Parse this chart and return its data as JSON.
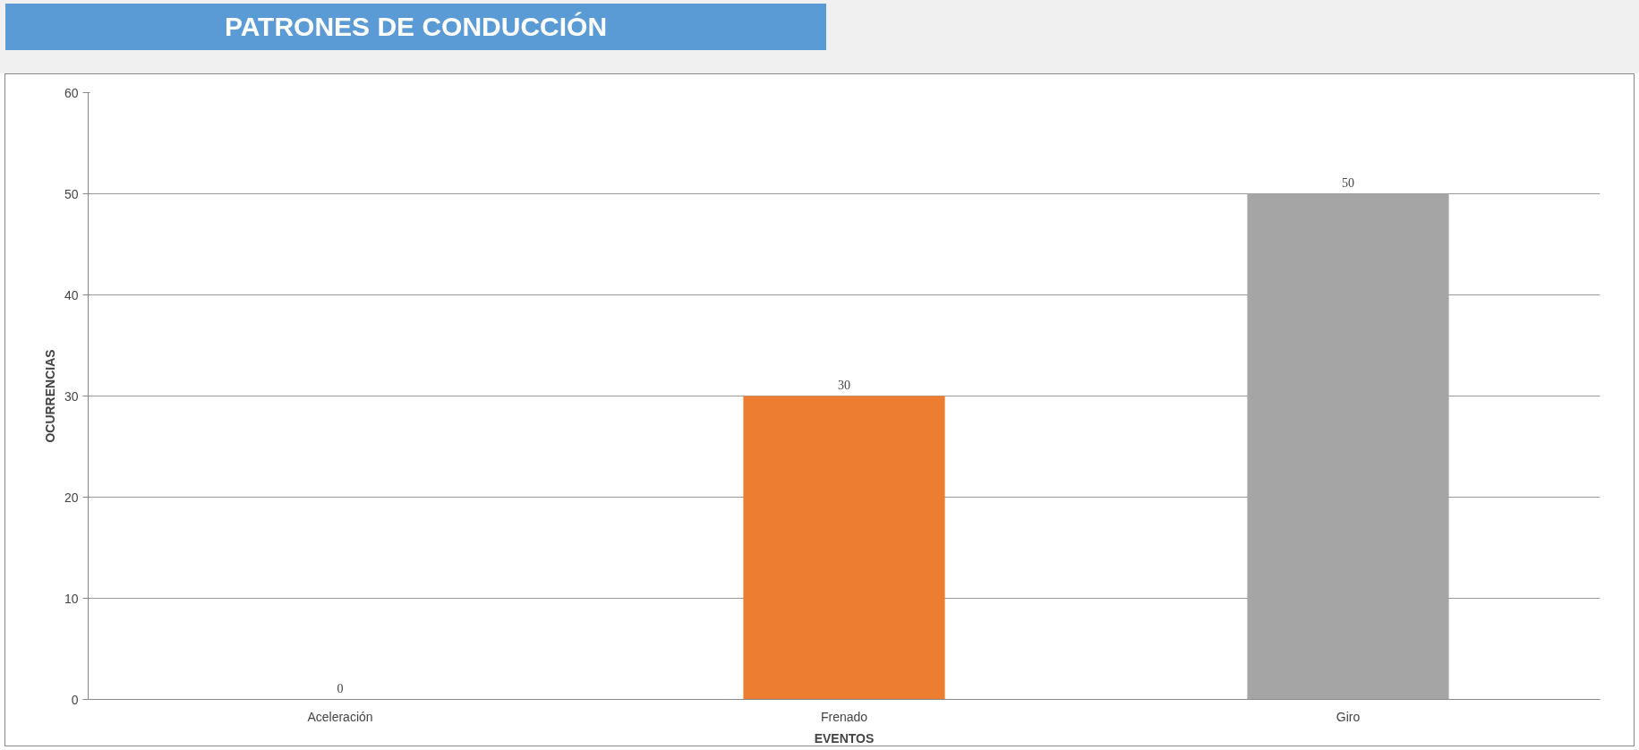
{
  "chart_data": {
    "type": "bar",
    "title": "PATRONES DE CONDUCCIÓN",
    "xlabel": "EVENTOS",
    "ylabel": "OCURRENCIAS",
    "categories": [
      "Aceleración",
      "Frenado",
      "Giro"
    ],
    "values": [
      0,
      30,
      50
    ],
    "colors": [
      "#4472c4",
      "#ed7d31",
      "#a5a5a5"
    ],
    "ylim": [
      0,
      60
    ],
    "yticks": [
      0,
      10,
      20,
      30,
      40,
      50,
      60
    ],
    "grid": "y",
    "data_labels": true
  }
}
